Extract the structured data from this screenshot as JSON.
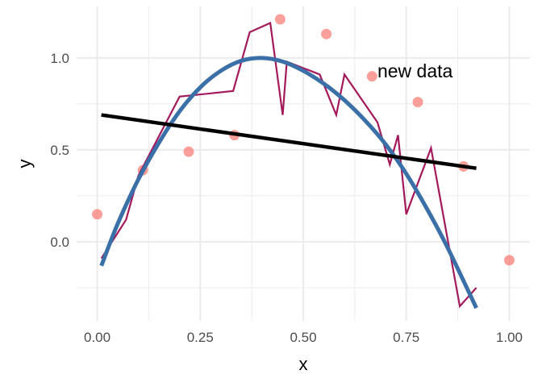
{
  "chart_data": {
    "type": "line",
    "title": "",
    "xlabel": "x",
    "ylabel": "y",
    "xlim": [
      -0.05,
      1.05
    ],
    "ylim": [
      -0.43,
      1.28
    ],
    "x_ticks": [
      0.0,
      0.25,
      0.5,
      0.75,
      1.0
    ],
    "x_tick_labels": [
      "0.00",
      "0.25",
      "0.50",
      "0.75",
      "1.00"
    ],
    "y_ticks": [
      0.0,
      0.5,
      1.0
    ],
    "y_tick_labels": [
      "0.0",
      "0.5",
      "1.0"
    ],
    "grid": true,
    "annotations": [
      {
        "text": "new data",
        "x": 0.68,
        "y": 0.93
      }
    ],
    "colors": {
      "points": "#f8766d",
      "jagged_line": "#a3195b",
      "smooth_curve": "#3a6fa8",
      "linear_fit": "#000000",
      "grid": "#ebebeb"
    },
    "series": [
      {
        "kind": "scatter",
        "x": [
          0.0,
          0.111,
          0.222,
          0.333,
          0.444,
          0.556,
          0.667,
          0.778,
          0.889,
          1.0
        ],
        "y": [
          0.15,
          0.39,
          0.49,
          0.58,
          1.21,
          1.13,
          0.9,
          0.76,
          0.41,
          -0.1
        ]
      },
      {
        "kind": "jagged-line",
        "x": [
          0.01,
          0.07,
          0.1,
          0.2,
          0.33,
          0.37,
          0.42,
          0.45,
          0.46,
          0.54,
          0.58,
          0.6,
          0.68,
          0.71,
          0.73,
          0.75,
          0.81,
          0.88,
          0.92
        ],
        "y": [
          -0.09,
          0.12,
          0.36,
          0.79,
          0.82,
          1.14,
          1.19,
          0.69,
          0.98,
          0.91,
          0.69,
          0.91,
          0.65,
          0.42,
          0.58,
          0.15,
          0.51,
          -0.35,
          -0.25
        ]
      },
      {
        "kind": "smooth-curve",
        "x": [
          0.01,
          0.05,
          0.1,
          0.15,
          0.2,
          0.25,
          0.3,
          0.35,
          0.4,
          0.45,
          0.5,
          0.55,
          0.6,
          0.65,
          0.7,
          0.75,
          0.8,
          0.85,
          0.92
        ],
        "y": [
          -0.13,
          0.1,
          0.34,
          0.54,
          0.71,
          0.84,
          0.93,
          0.985,
          1.0,
          0.98,
          0.93,
          0.86,
          0.77,
          0.66,
          0.53,
          0.37,
          0.18,
          -0.03,
          -0.36
        ]
      },
      {
        "kind": "linear-fit",
        "x": [
          0.01,
          0.92
        ],
        "y": [
          0.69,
          0.4
        ]
      }
    ]
  }
}
